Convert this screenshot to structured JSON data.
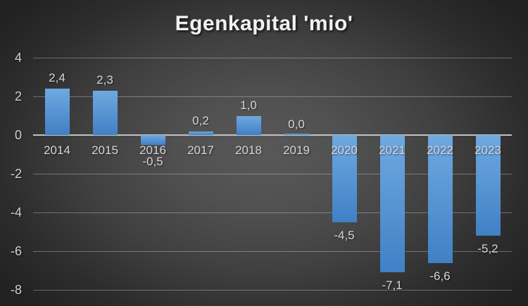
{
  "title": "Egenkapital 'mio'",
  "chart_data": {
    "type": "bar",
    "title": "Egenkapital 'mio'",
    "categories": [
      "2014",
      "2015",
      "2016",
      "2017",
      "2018",
      "2019",
      "2020",
      "2021",
      "2022",
      "2023"
    ],
    "values": [
      2.4,
      2.3,
      -0.5,
      0.2,
      1.0,
      0.0,
      -4.5,
      -7.1,
      -6.6,
      -5.2
    ],
    "value_labels": [
      "2,4",
      "2,3",
      "-0,5",
      "0,2",
      "1,0",
      "0,0",
      "-4,5",
      "-7,1",
      "-6,6",
      "-5,2"
    ],
    "xlabel": "",
    "ylabel": "",
    "ylim": [
      -8,
      4
    ],
    "yticks": [
      4,
      2,
      0,
      -2,
      -4,
      -6,
      -8
    ],
    "ytick_labels": [
      "4",
      "2",
      "0",
      "-2",
      "-4",
      "-6",
      "-8"
    ],
    "decimal_separator": ",",
    "grid": true,
    "legend": false
  },
  "colors": {
    "bar_top": "#6FA9E0",
    "bar_bottom": "#4080C5",
    "background_center": "#585858",
    "background_edge": "#222222",
    "gridline": "rgba(255,255,255,0.30)",
    "axis_line": "#c2c2c2",
    "label_text": "#d6d6d6",
    "title_text": "#f1f1f1"
  }
}
